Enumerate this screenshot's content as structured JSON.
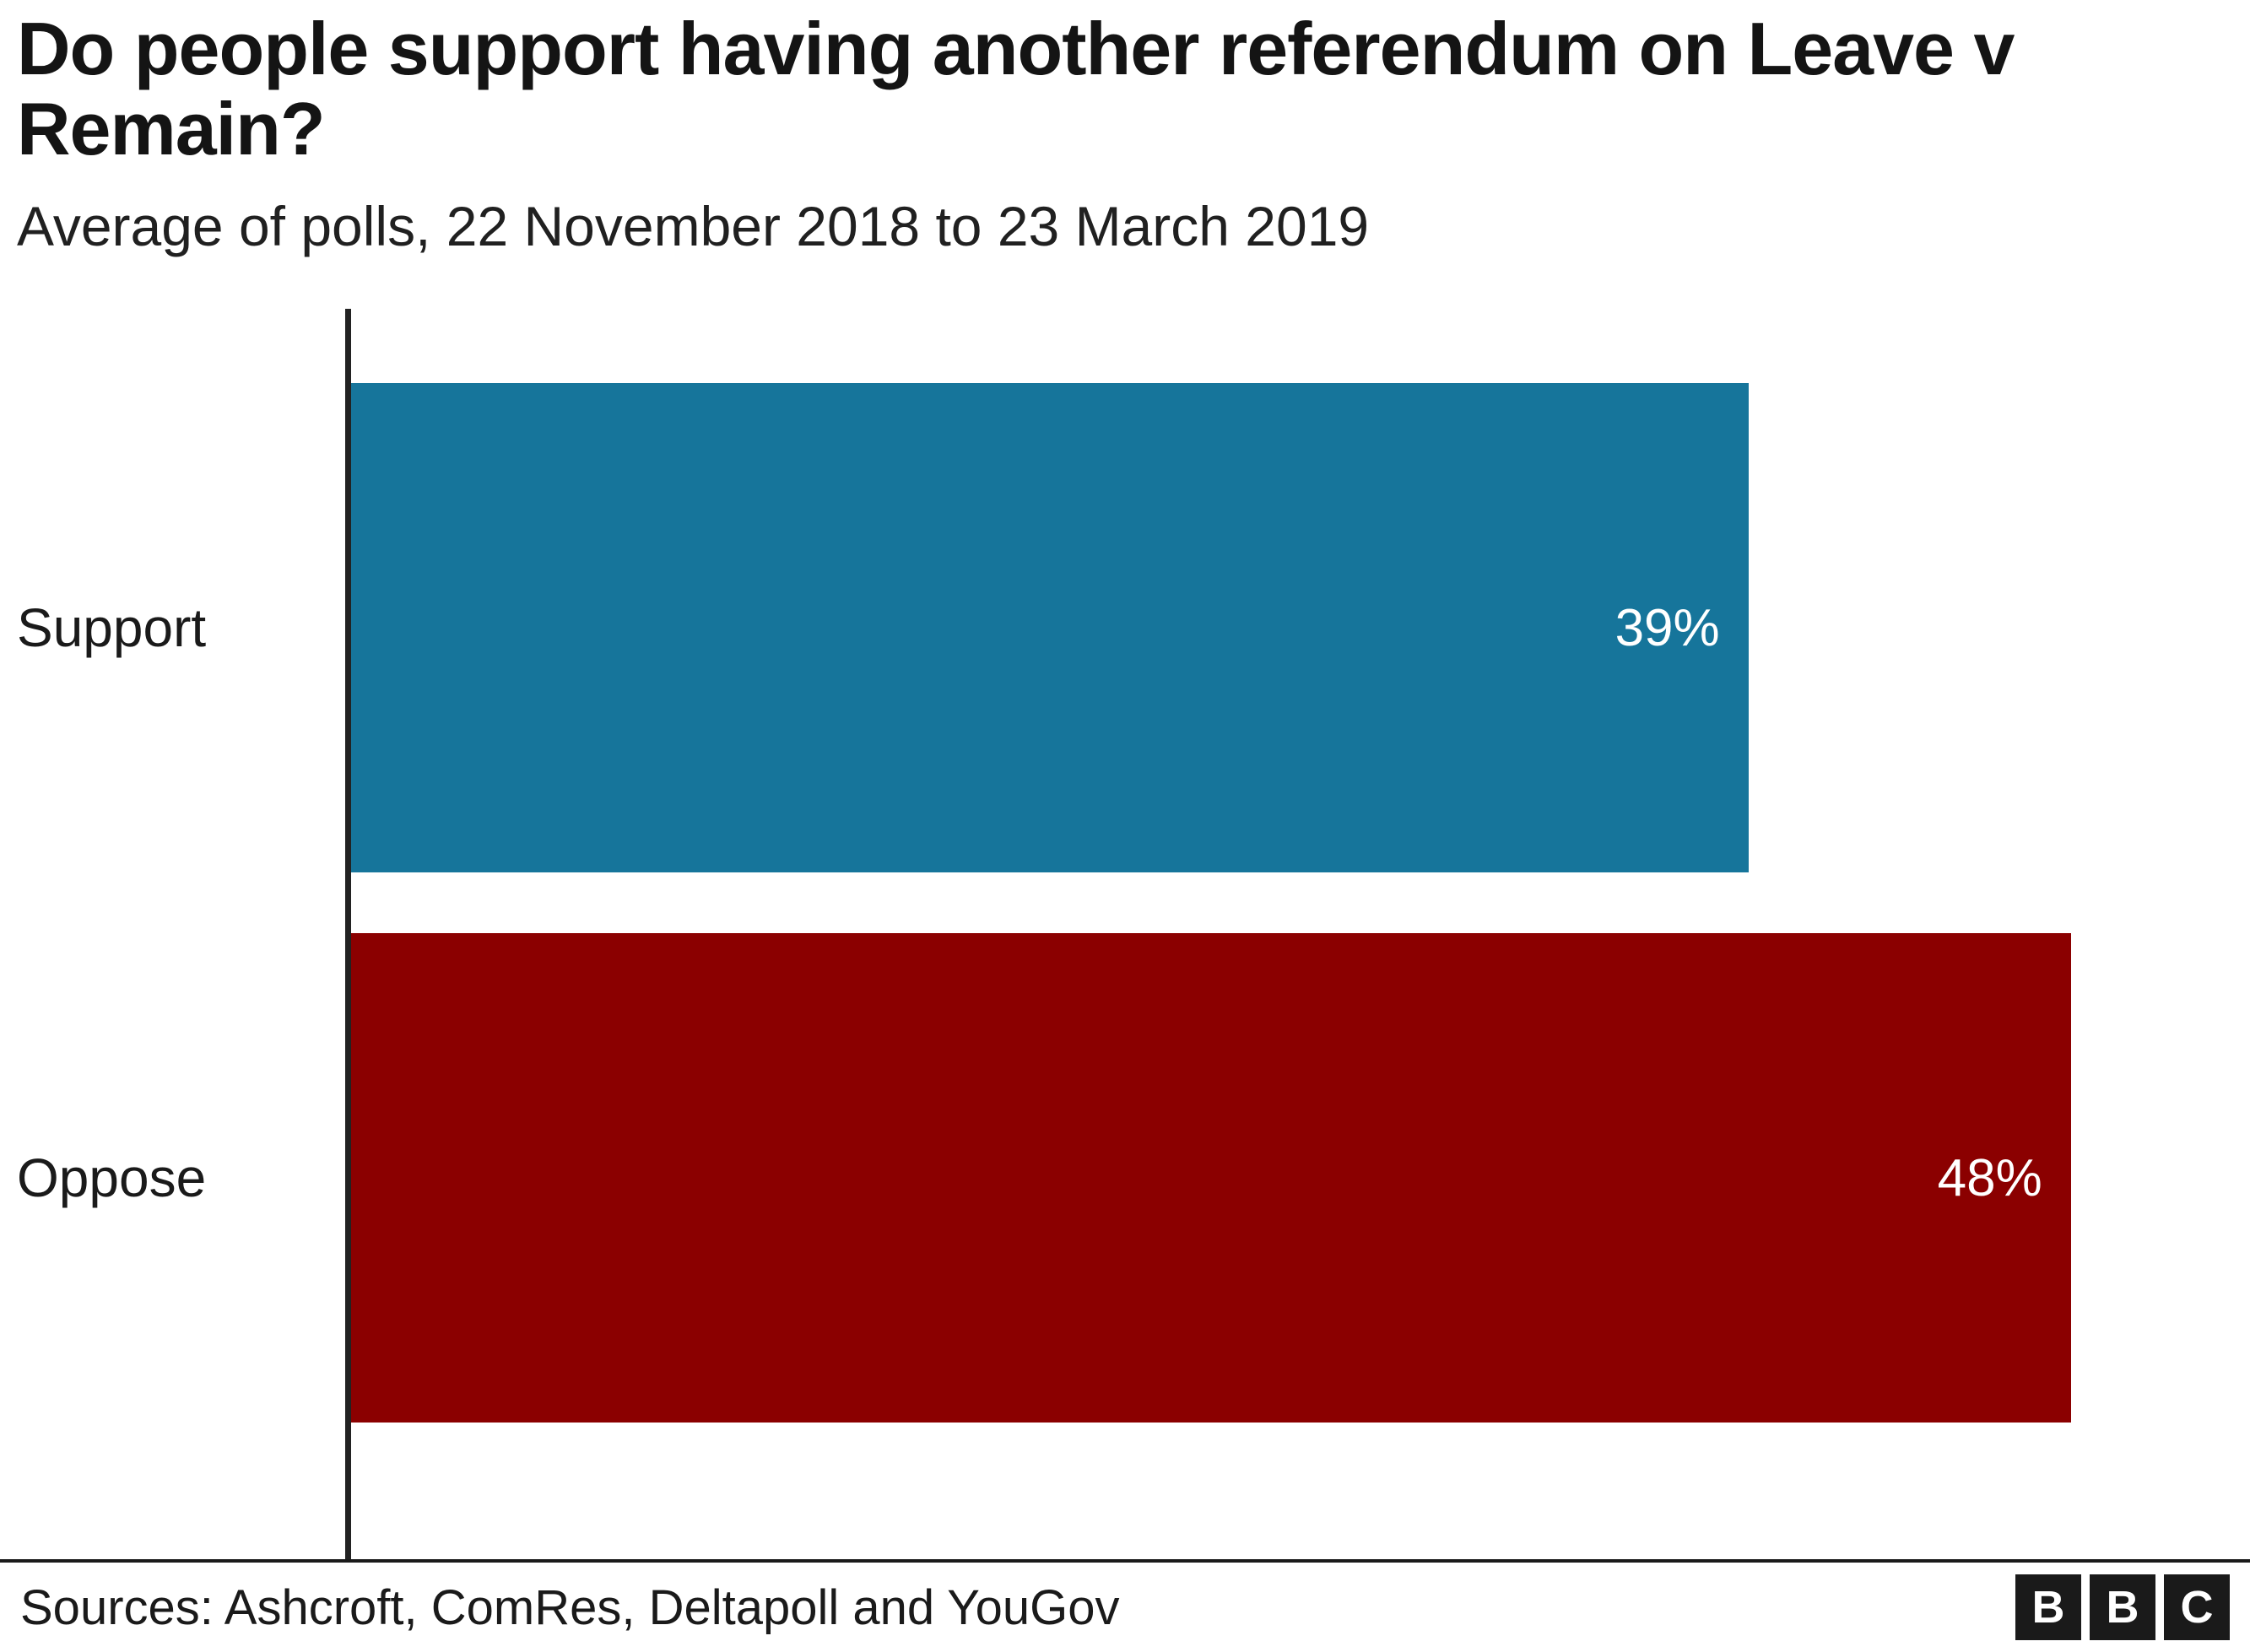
{
  "chart_data": {
    "type": "bar",
    "orientation": "horizontal",
    "title": "Do people support having another referendum on Leave v Remain?",
    "subtitle": "Average of polls, 22 November 2018 to 23 March 2019",
    "categories": [
      "Support",
      "Oppose"
    ],
    "values": [
      39,
      48
    ],
    "value_labels": [
      "39%",
      "48%"
    ],
    "colors": [
      "#16759b",
      "#8b0000"
    ],
    "axis_max": 53,
    "grid": "off",
    "legend": "none"
  },
  "footer": {
    "source_label": "Sources: Ashcroft, ComRes, Deltapoll and YouGov",
    "logo_letters": [
      "B",
      "B",
      "C"
    ]
  }
}
